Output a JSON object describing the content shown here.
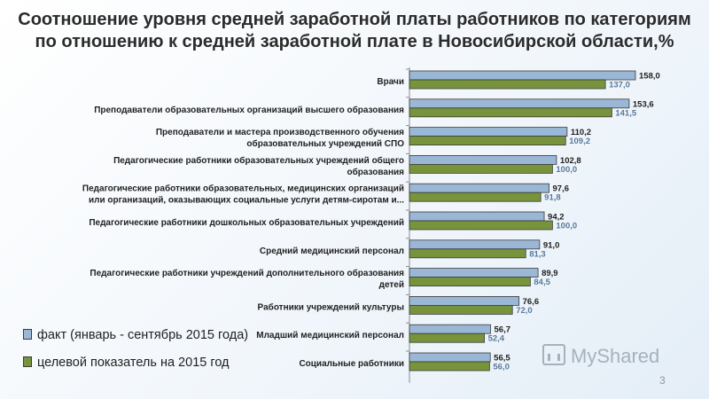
{
  "title": {
    "line1": "Соотношение уровня средней заработной платы работников по категориям",
    "line2": "по отношению к средней заработной плате в Новосибирской области,%"
  },
  "legend": {
    "fact": "факт (январь - сентябрь 2015 года)",
    "target": "целевой показатель на 2015 год"
  },
  "watermark": "MyShared",
  "page_number": "3",
  "colors": {
    "fact": "#9bb7d6",
    "target": "#77933c",
    "fact_label": "#1f1f1f",
    "target_label": "#5a7a9a"
  },
  "chart_data": {
    "type": "bar",
    "orientation": "horizontal",
    "categories": [
      [
        "Врачи"
      ],
      [
        "Преподаватели образовательных организаций высшего образования"
      ],
      [
        "Преподаватели и мастера производственного обучения",
        "образовательных учреждений СПО"
      ],
      [
        "Педагогические работники образовательных учреждений общего",
        "образования"
      ],
      [
        "Педагогические работники образовательных, медицинских организаций",
        "или организаций, оказывающих социальные услуги детям-сиротам и..."
      ],
      [
        "Педагогические работники дошкольных образовательных учреждений"
      ],
      [
        "Средний медицинский персонал"
      ],
      [
        "Педагогические работники учреждений дополнительного образования",
        "детей"
      ],
      [
        "Работники учреждений культуры"
      ],
      [
        "Младший медицинский персонал"
      ],
      [
        "Социальные работники"
      ]
    ],
    "series": [
      {
        "name": "факт (январь - сентябрь 2015 года)",
        "values": [
          158.0,
          153.6,
          110.2,
          102.8,
          97.6,
          94.2,
          91.0,
          89.9,
          76.6,
          56.7,
          56.5
        ],
        "labels": [
          "158,0",
          "153,6",
          "110,2",
          "102,8",
          "97,6",
          "94,2",
          "91,0",
          "89,9",
          "76,6",
          "56,7",
          "56,5"
        ]
      },
      {
        "name": "целевой показатель на 2015 год",
        "values": [
          137.0,
          141.5,
          109.2,
          100.0,
          91.8,
          100.0,
          81.3,
          84.5,
          72.0,
          52.4,
          56.0
        ],
        "labels": [
          "137,0",
          "141,5",
          "109,2",
          "100,0",
          "91,8",
          "100,0",
          "81,3",
          "84,5",
          "72,0",
          "52,4",
          "56,0"
        ]
      }
    ],
    "xlim": [
      0,
      165
    ],
    "grid": false,
    "legend_position": "bottom-left"
  }
}
